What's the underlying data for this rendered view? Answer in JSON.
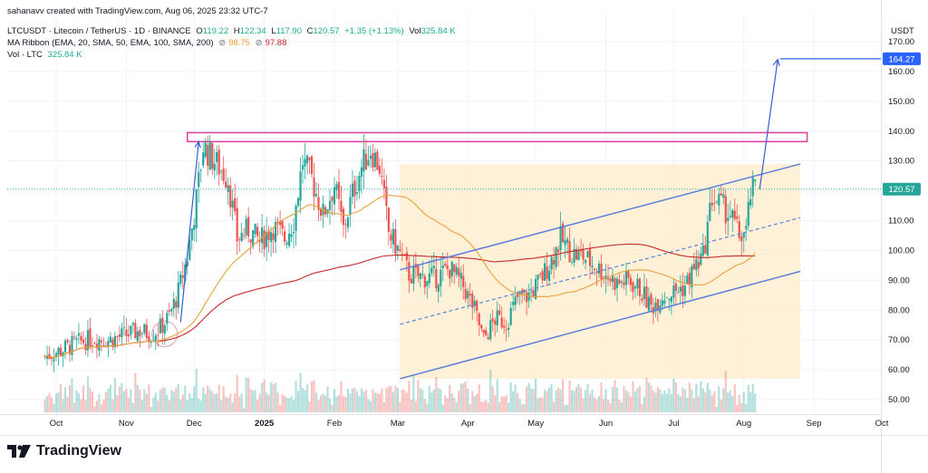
{
  "header": {
    "credit": "sahanavv created with TradingView.com, Aug 06, 2025 23:32 UTC-7",
    "symbol": "LTCUSDT · Litecoin / TetherUS · 1D · BINANCE",
    "o_label": "O",
    "o_value": "119.22",
    "h_label": "H",
    "h_value": "122.34",
    "l_label": "L",
    "l_value": "117.90",
    "c_label": "C",
    "c_value": "120.57",
    "change": "+1.35 (+1.13%)",
    "vol_label": "Vol",
    "vol_value": "325.84 K",
    "ma_label": "MA Ribbon (EMA, 20, SMA, 50, EMA, 100, SMA, 200)",
    "ma1_value": "98.75",
    "ma2_value": "97.88",
    "vol2_label": "Vol · LTC",
    "vol2_value": "325.84 K"
  },
  "brand": "TradingView",
  "chart_data": {
    "type": "candlestick",
    "symbol": "LTCUSDT",
    "timeframe": "1D",
    "currency": "USDT",
    "y_ticks": [
      50,
      60,
      70,
      80,
      90,
      100,
      110,
      120,
      130,
      140,
      150,
      160,
      170
    ],
    "ylim": [
      45,
      173
    ],
    "x_ticks": [
      "Oct",
      "Nov",
      "Dec",
      "2025",
      "Feb",
      "Mar",
      "Apr",
      "May",
      "Jun",
      "Jul",
      "Aug",
      "Sep",
      "Oct"
    ],
    "price_labels": [
      {
        "value": 164.27,
        "text": "164.27",
        "color": "#2962ff"
      },
      {
        "value": 120.57,
        "text": "120.57",
        "color": "#26a69a"
      }
    ],
    "colors": {
      "up": "#26a69a",
      "down": "#ef5350",
      "ma_short": "#e8a33a",
      "ma_long": "#c62828",
      "channel": "#5b7fdb",
      "resistance": "#e0409a",
      "fill": "#fdebc8"
    },
    "closes": [
      {
        "date": "2024-09-26",
        "close": 64.5
      },
      {
        "date": "2024-10-03",
        "close": 66.5
      },
      {
        "date": "2024-10-10",
        "close": 69.0
      },
      {
        "date": "2024-10-17",
        "close": 70.5
      },
      {
        "date": "2024-10-24",
        "close": 70.0
      },
      {
        "date": "2024-10-31",
        "close": 71.5
      },
      {
        "date": "2024-11-07",
        "close": 73.0
      },
      {
        "date": "2024-11-12",
        "close": 72.0
      },
      {
        "date": "2024-11-16",
        "close": 74.0
      },
      {
        "date": "2024-11-20",
        "close": 78.0
      },
      {
        "date": "2024-11-24",
        "close": 86.0
      },
      {
        "date": "2024-11-28",
        "close": 98.0
      },
      {
        "date": "2024-12-02",
        "close": 117.0
      },
      {
        "date": "2024-12-05",
        "close": 135.0
      },
      {
        "date": "2024-12-08",
        "close": 132.0
      },
      {
        "date": "2024-12-12",
        "close": 128.0
      },
      {
        "date": "2024-12-16",
        "close": 124.0
      },
      {
        "date": "2024-12-20",
        "close": 104.0
      },
      {
        "date": "2024-12-25",
        "close": 107.0
      },
      {
        "date": "2024-12-30",
        "close": 103.0
      },
      {
        "date": "2025-01-05",
        "close": 108.0
      },
      {
        "date": "2025-01-10",
        "close": 104.0
      },
      {
        "date": "2025-01-14",
        "close": 110.0
      },
      {
        "date": "2025-01-18",
        "close": 130.0
      },
      {
        "date": "2025-01-22",
        "close": 124.0
      },
      {
        "date": "2025-01-27",
        "close": 112.0
      },
      {
        "date": "2025-02-01",
        "close": 122.0
      },
      {
        "date": "2025-02-05",
        "close": 107.0
      },
      {
        "date": "2025-02-09",
        "close": 119.0
      },
      {
        "date": "2025-02-13",
        "close": 128.0
      },
      {
        "date": "2025-02-17",
        "close": 134.0
      },
      {
        "date": "2025-02-21",
        "close": 128.0
      },
      {
        "date": "2025-02-25",
        "close": 106.0
      },
      {
        "date": "2025-03-02",
        "close": 99.0
      },
      {
        "date": "2025-03-06",
        "close": 92.0
      },
      {
        "date": "2025-03-12",
        "close": 91.0
      },
      {
        "date": "2025-03-18",
        "close": 91.0
      },
      {
        "date": "2025-03-24",
        "close": 94.0
      },
      {
        "date": "2025-03-30",
        "close": 88.0
      },
      {
        "date": "2025-04-04",
        "close": 80.0
      },
      {
        "date": "2025-04-08",
        "close": 70.0
      },
      {
        "date": "2025-04-13",
        "close": 77.0
      },
      {
        "date": "2025-04-18",
        "close": 76.0
      },
      {
        "date": "2025-04-23",
        "close": 84.0
      },
      {
        "date": "2025-04-28",
        "close": 85.0
      },
      {
        "date": "2025-05-03",
        "close": 90.0
      },
      {
        "date": "2025-05-08",
        "close": 97.0
      },
      {
        "date": "2025-05-12",
        "close": 104.0
      },
      {
        "date": "2025-05-17",
        "close": 99.0
      },
      {
        "date": "2025-05-22",
        "close": 98.0
      },
      {
        "date": "2025-05-27",
        "close": 95.0
      },
      {
        "date": "2025-06-01",
        "close": 92.0
      },
      {
        "date": "2025-06-06",
        "close": 89.0
      },
      {
        "date": "2025-06-11",
        "close": 90.0
      },
      {
        "date": "2025-06-16",
        "close": 87.0
      },
      {
        "date": "2025-06-21",
        "close": 81.0
      },
      {
        "date": "2025-06-26",
        "close": 85.0
      },
      {
        "date": "2025-07-01",
        "close": 86.0
      },
      {
        "date": "2025-07-06",
        "close": 88.0
      },
      {
        "date": "2025-07-10",
        "close": 94.0
      },
      {
        "date": "2025-07-14",
        "close": 98.0
      },
      {
        "date": "2025-07-18",
        "close": 118.0
      },
      {
        "date": "2025-07-22",
        "close": 115.0
      },
      {
        "date": "2025-07-26",
        "close": 112.0
      },
      {
        "date": "2025-07-30",
        "close": 105.0
      },
      {
        "date": "2025-08-02",
        "close": 106.0
      },
      {
        "date": "2025-08-04",
        "close": 119.0
      },
      {
        "date": "2025-08-06",
        "close": 120.57
      }
    ]
  }
}
